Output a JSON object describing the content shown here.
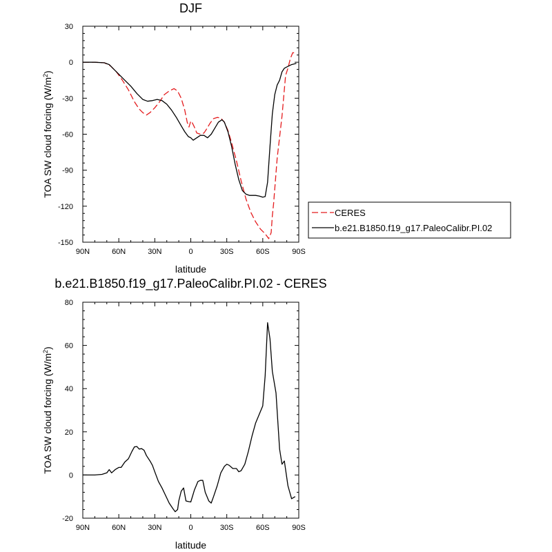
{
  "chart_data": [
    {
      "type": "line",
      "title": "DJF",
      "xlabel": "latitude",
      "ylabel": "TOA SW cloud forcing (W/m",
      "ylabel_sup": "2",
      "ylabel_end": ")",
      "xlim": [
        90,
        -90
      ],
      "ylim": [
        -150,
        30
      ],
      "x_tick_labels": [
        "90N",
        "60N",
        "30N",
        "0",
        "30S",
        "60S",
        "90S"
      ],
      "x_tick_values": [
        90,
        60,
        30,
        0,
        -30,
        -60,
        -90
      ],
      "y_ticks": [
        30,
        0,
        -30,
        -60,
        -90,
        -120,
        -150
      ],
      "legend_position": "right",
      "series": [
        {
          "name": "CERES",
          "color": "#e41a1c",
          "dash": "dashed",
          "points": [
            [
              90,
              0
            ],
            [
              80,
              0
            ],
            [
              72,
              -0.5
            ],
            [
              67,
              -3
            ],
            [
              62,
              -8
            ],
            [
              57,
              -15
            ],
            [
              52,
              -23
            ],
            [
              47,
              -33
            ],
            [
              43,
              -39
            ],
            [
              40,
              -42
            ],
            [
              37,
              -44
            ],
            [
              34,
              -42
            ],
            [
              30,
              -38
            ],
            [
              26,
              -33
            ],
            [
              22,
              -27
            ],
            [
              18,
              -24
            ],
            [
              14,
              -22
            ],
            [
              11,
              -24
            ],
            [
              8,
              -30
            ],
            [
              5,
              -40
            ],
            [
              3,
              -50
            ],
            [
              1.5,
              -54
            ],
            [
              0,
              -49
            ],
            [
              -1,
              -50
            ],
            [
              -3,
              -54
            ],
            [
              -5,
              -59
            ],
            [
              -8,
              -60
            ],
            [
              -11,
              -59
            ],
            [
              -13,
              -56
            ],
            [
              -16,
              -51
            ],
            [
              -19,
              -47
            ],
            [
              -22,
              -46
            ],
            [
              -25,
              -46.5
            ],
            [
              -28,
              -50
            ],
            [
              -31,
              -57
            ],
            [
              -34,
              -67
            ],
            [
              -38,
              -82
            ],
            [
              -42,
              -99
            ],
            [
              -46,
              -114
            ],
            [
              -50,
              -125
            ],
            [
              -54,
              -133
            ],
            [
              -58,
              -139
            ],
            [
              -62,
              -143
            ],
            [
              -65,
              -147
            ],
            [
              -67,
              -142
            ],
            [
              -68,
              -128
            ],
            [
              -69,
              -118
            ],
            [
              -72,
              -80
            ],
            [
              -76,
              -45
            ],
            [
              -79,
              -11
            ],
            [
              -81,
              -5
            ],
            [
              -83,
              3
            ],
            [
              -85,
              8
            ],
            [
              -88,
              7.5
            ]
          ]
        },
        {
          "name": "b.e21.B1850.f19_g17.PaleoCalibr.PI.02",
          "color": "#000000",
          "dash": "solid",
          "points": [
            [
              90,
              0
            ],
            [
              80,
              0
            ],
            [
              72,
              -0.5
            ],
            [
              68,
              -2
            ],
            [
              64,
              -6
            ],
            [
              60,
              -10
            ],
            [
              55,
              -15
            ],
            [
              50,
              -20
            ],
            [
              45,
              -26
            ],
            [
              40,
              -31
            ],
            [
              36,
              -32.5
            ],
            [
              32,
              -32
            ],
            [
              28,
              -31
            ],
            [
              24,
              -32
            ],
            [
              20,
              -35
            ],
            [
              16,
              -40
            ],
            [
              12,
              -46
            ],
            [
              8,
              -53
            ],
            [
              5,
              -58
            ],
            [
              2,
              -62
            ],
            [
              0,
              -63
            ],
            [
              -2,
              -65
            ],
            [
              -5,
              -63
            ],
            [
              -8,
              -61
            ],
            [
              -11,
              -61
            ],
            [
              -14,
              -63
            ],
            [
              -17,
              -60
            ],
            [
              -20,
              -55
            ],
            [
              -23,
              -50
            ],
            [
              -26,
              -48
            ],
            [
              -28,
              -50
            ],
            [
              -31,
              -58
            ],
            [
              -34,
              -70
            ],
            [
              -37,
              -85
            ],
            [
              -40,
              -98
            ],
            [
              -43,
              -107
            ],
            [
              -46,
              -110
            ],
            [
              -49,
              -111
            ],
            [
              -54,
              -111
            ],
            [
              -57,
              -111.5
            ],
            [
              -60,
              -112.5
            ],
            [
              -62,
              -112
            ],
            [
              -64,
              -100
            ],
            [
              -66,
              -70
            ],
            [
              -68,
              -43
            ],
            [
              -70,
              -27
            ],
            [
              -72,
              -19
            ],
            [
              -74,
              -15
            ],
            [
              -76,
              -8
            ],
            [
              -78,
              -5
            ],
            [
              -80,
              -4
            ],
            [
              -84,
              -2
            ],
            [
              -88,
              -1
            ]
          ]
        }
      ]
    },
    {
      "type": "line",
      "title": "b.e21.B1850.f19_g17.PaleoCalibr.PI.02 - CERES",
      "xlabel": "latitude",
      "ylabel": "TOA SW cloud forcing (W/m",
      "ylabel_sup": "2",
      "ylabel_end": ")",
      "xlim": [
        90,
        -90
      ],
      "ylim": [
        -20,
        80
      ],
      "x_tick_labels": [
        "90N",
        "60N",
        "30N",
        "0",
        "30S",
        "60S",
        "90S"
      ],
      "x_tick_values": [
        90,
        60,
        30,
        0,
        -30,
        -60,
        -90
      ],
      "y_ticks": [
        80,
        60,
        40,
        20,
        0,
        -20
      ],
      "series": [
        {
          "name": "",
          "color": "#000000",
          "dash": "solid",
          "points": [
            [
              90,
              0
            ],
            [
              80,
              0
            ],
            [
              74,
              0.3
            ],
            [
              70,
              1
            ],
            [
              68,
              2.5
            ],
            [
              66,
              1
            ],
            [
              63,
              2.5
            ],
            [
              60,
              3.5
            ],
            [
              58,
              3.5
            ],
            [
              55,
              6
            ],
            [
              52,
              7.5
            ],
            [
              49,
              11
            ],
            [
              47,
              13
            ],
            [
              45,
              13.2
            ],
            [
              43,
              12
            ],
            [
              41,
              12.2
            ],
            [
              39,
              11.5
            ],
            [
              37,
              9
            ],
            [
              34,
              6.5
            ],
            [
              32,
              4.5
            ],
            [
              30,
              1.5
            ],
            [
              27,
              -3
            ],
            [
              24,
              -6
            ],
            [
              21,
              -9.5
            ],
            [
              18,
              -13
            ],
            [
              15,
              -15.5
            ],
            [
              13,
              -17
            ],
            [
              11,
              -16
            ],
            [
              10,
              -12
            ],
            [
              8,
              -7.5
            ],
            [
              6,
              -6
            ],
            [
              4,
              -12
            ],
            [
              2,
              -12.3
            ],
            [
              0,
              -12.5
            ],
            [
              -3,
              -7
            ],
            [
              -6,
              -3
            ],
            [
              -8,
              -2.5
            ],
            [
              -10,
              -2.5
            ],
            [
              -12,
              -8
            ],
            [
              -15,
              -12
            ],
            [
              -17,
              -13
            ],
            [
              -19,
              -10
            ],
            [
              -22,
              -5
            ],
            [
              -25,
              1
            ],
            [
              -28,
              4
            ],
            [
              -30,
              5
            ],
            [
              -32,
              4.5
            ],
            [
              -35,
              3
            ],
            [
              -38,
              3
            ],
            [
              -40,
              1.5
            ],
            [
              -42,
              2
            ],
            [
              -45,
              5
            ],
            [
              -48,
              11
            ],
            [
              -51,
              18
            ],
            [
              -54,
              24
            ],
            [
              -57,
              28
            ],
            [
              -60,
              32
            ],
            [
              -62,
              46
            ],
            [
              -64,
              70.5
            ],
            [
              -66,
              63
            ],
            [
              -68,
              48
            ],
            [
              -71,
              38
            ],
            [
              -74,
              12
            ],
            [
              -76,
              5
            ],
            [
              -78,
              6.5
            ],
            [
              -81,
              -5
            ],
            [
              -84,
              -11
            ],
            [
              -87,
              -10
            ]
          ]
        }
      ]
    }
  ]
}
